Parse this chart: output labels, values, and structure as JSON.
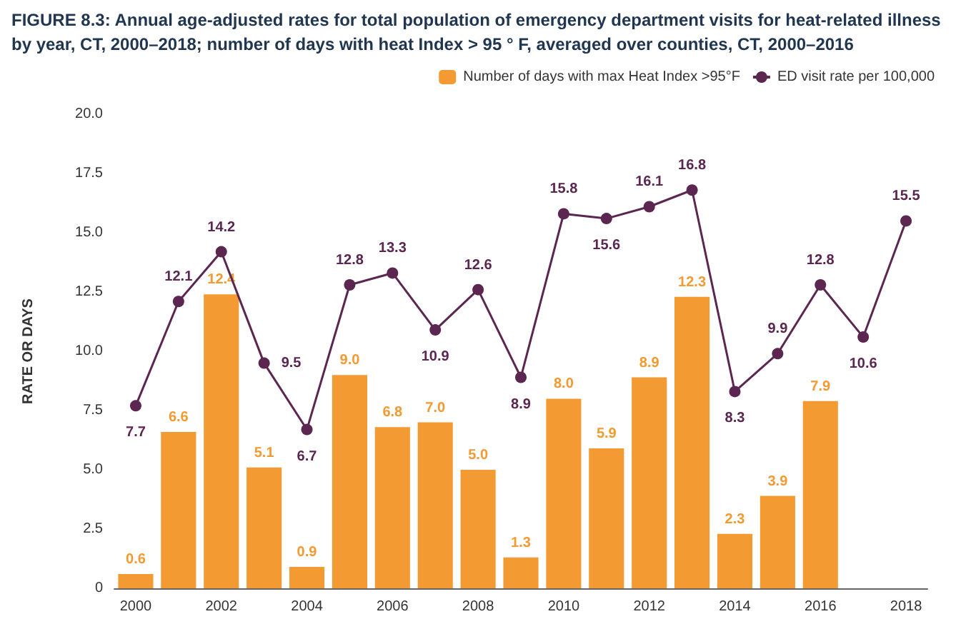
{
  "chart_data": {
    "type": "bar",
    "title": "FIGURE 8.3: Annual age-adjusted rates for total population of emergency department visits for heat-related illness by year, CT, 2000–2018; number of days with heat Index > 95 ° F, averaged over counties, CT, 2000–2016",
    "ylabel": "RATE OR DAYS",
    "categories": [
      "2000",
      null,
      "2002",
      null,
      "2004",
      null,
      "2006",
      null,
      "2008",
      null,
      "2010",
      null,
      "2012",
      null,
      "2014",
      null,
      "2016",
      null,
      "2018"
    ],
    "series": [
      {
        "name": "Number of days with max Heat Index >95°F",
        "color": "#f39a32",
        "values": [
          0.6,
          6.6,
          12.4,
          5.1,
          0.9,
          9.0,
          6.8,
          7.0,
          5.0,
          1.3,
          8.0,
          5.9,
          8.9,
          12.3,
          2.3,
          3.9,
          7.9,
          null,
          null
        ],
        "value_labels": [
          "0.6",
          "6.6",
          "12.4",
          "5.1",
          "0.9",
          "9.0",
          "6.8",
          "7.0",
          "5.0",
          "1.3",
          "8.0",
          "5.9",
          "8.9",
          "12.3",
          "2.3",
          "3.9",
          "7.9",
          null,
          null
        ]
      },
      {
        "name": "ED visit rate per 100,000",
        "type": "line",
        "color": "#5b2650",
        "marker": "circle",
        "values": [
          7.7,
          12.1,
          14.2,
          9.5,
          6.7,
          12.8,
          13.3,
          10.9,
          12.6,
          8.9,
          15.8,
          15.6,
          16.1,
          16.8,
          8.3,
          9.9,
          12.8,
          10.6,
          15.5
        ],
        "value_labels": [
          "7.7",
          "12.1",
          "14.2",
          "9.5",
          "6.7",
          "12.8",
          "13.3",
          "10.9",
          "12.6",
          "8.9",
          "15.8",
          "15.6",
          "16.1",
          "16.8",
          "8.3",
          "9.9",
          "12.8",
          "10.6",
          "15.5"
        ]
      }
    ],
    "ylim": [
      0,
      20
    ],
    "yticks": [
      0,
      {
        "value": 2.5,
        "label": "2.5"
      },
      {
        "value": 5,
        "label": "5.0"
      },
      {
        "value": 7.5,
        "label": "7.5"
      },
      {
        "value": 10,
        "label": "10.0"
      },
      {
        "value": 12.5,
        "label": "12.5"
      },
      {
        "value": 15,
        "label": "15.0"
      },
      {
        "value": 17.5,
        "label": "17.5"
      },
      {
        "value": 20,
        "label": "20.0"
      }
    ],
    "legend": "top right",
    "grid": false
  }
}
